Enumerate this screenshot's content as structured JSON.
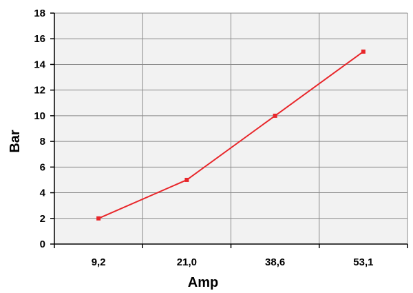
{
  "chart_data": {
    "type": "line",
    "categories": [
      "9,2",
      "21,0",
      "38,6",
      "53,1"
    ],
    "series": [
      {
        "values": [
          2,
          5,
          10,
          15
        ],
        "color": "#e8262a"
      }
    ],
    "title": "",
    "xlabel": "Amp",
    "ylabel": "Bar",
    "ylim": [
      0,
      18
    ],
    "yticks": [
      0,
      2,
      4,
      6,
      8,
      10,
      12,
      14,
      16,
      18
    ],
    "grid": true,
    "legend": "none",
    "plot_background": "#f2f2f2",
    "grid_color": "#888888"
  }
}
